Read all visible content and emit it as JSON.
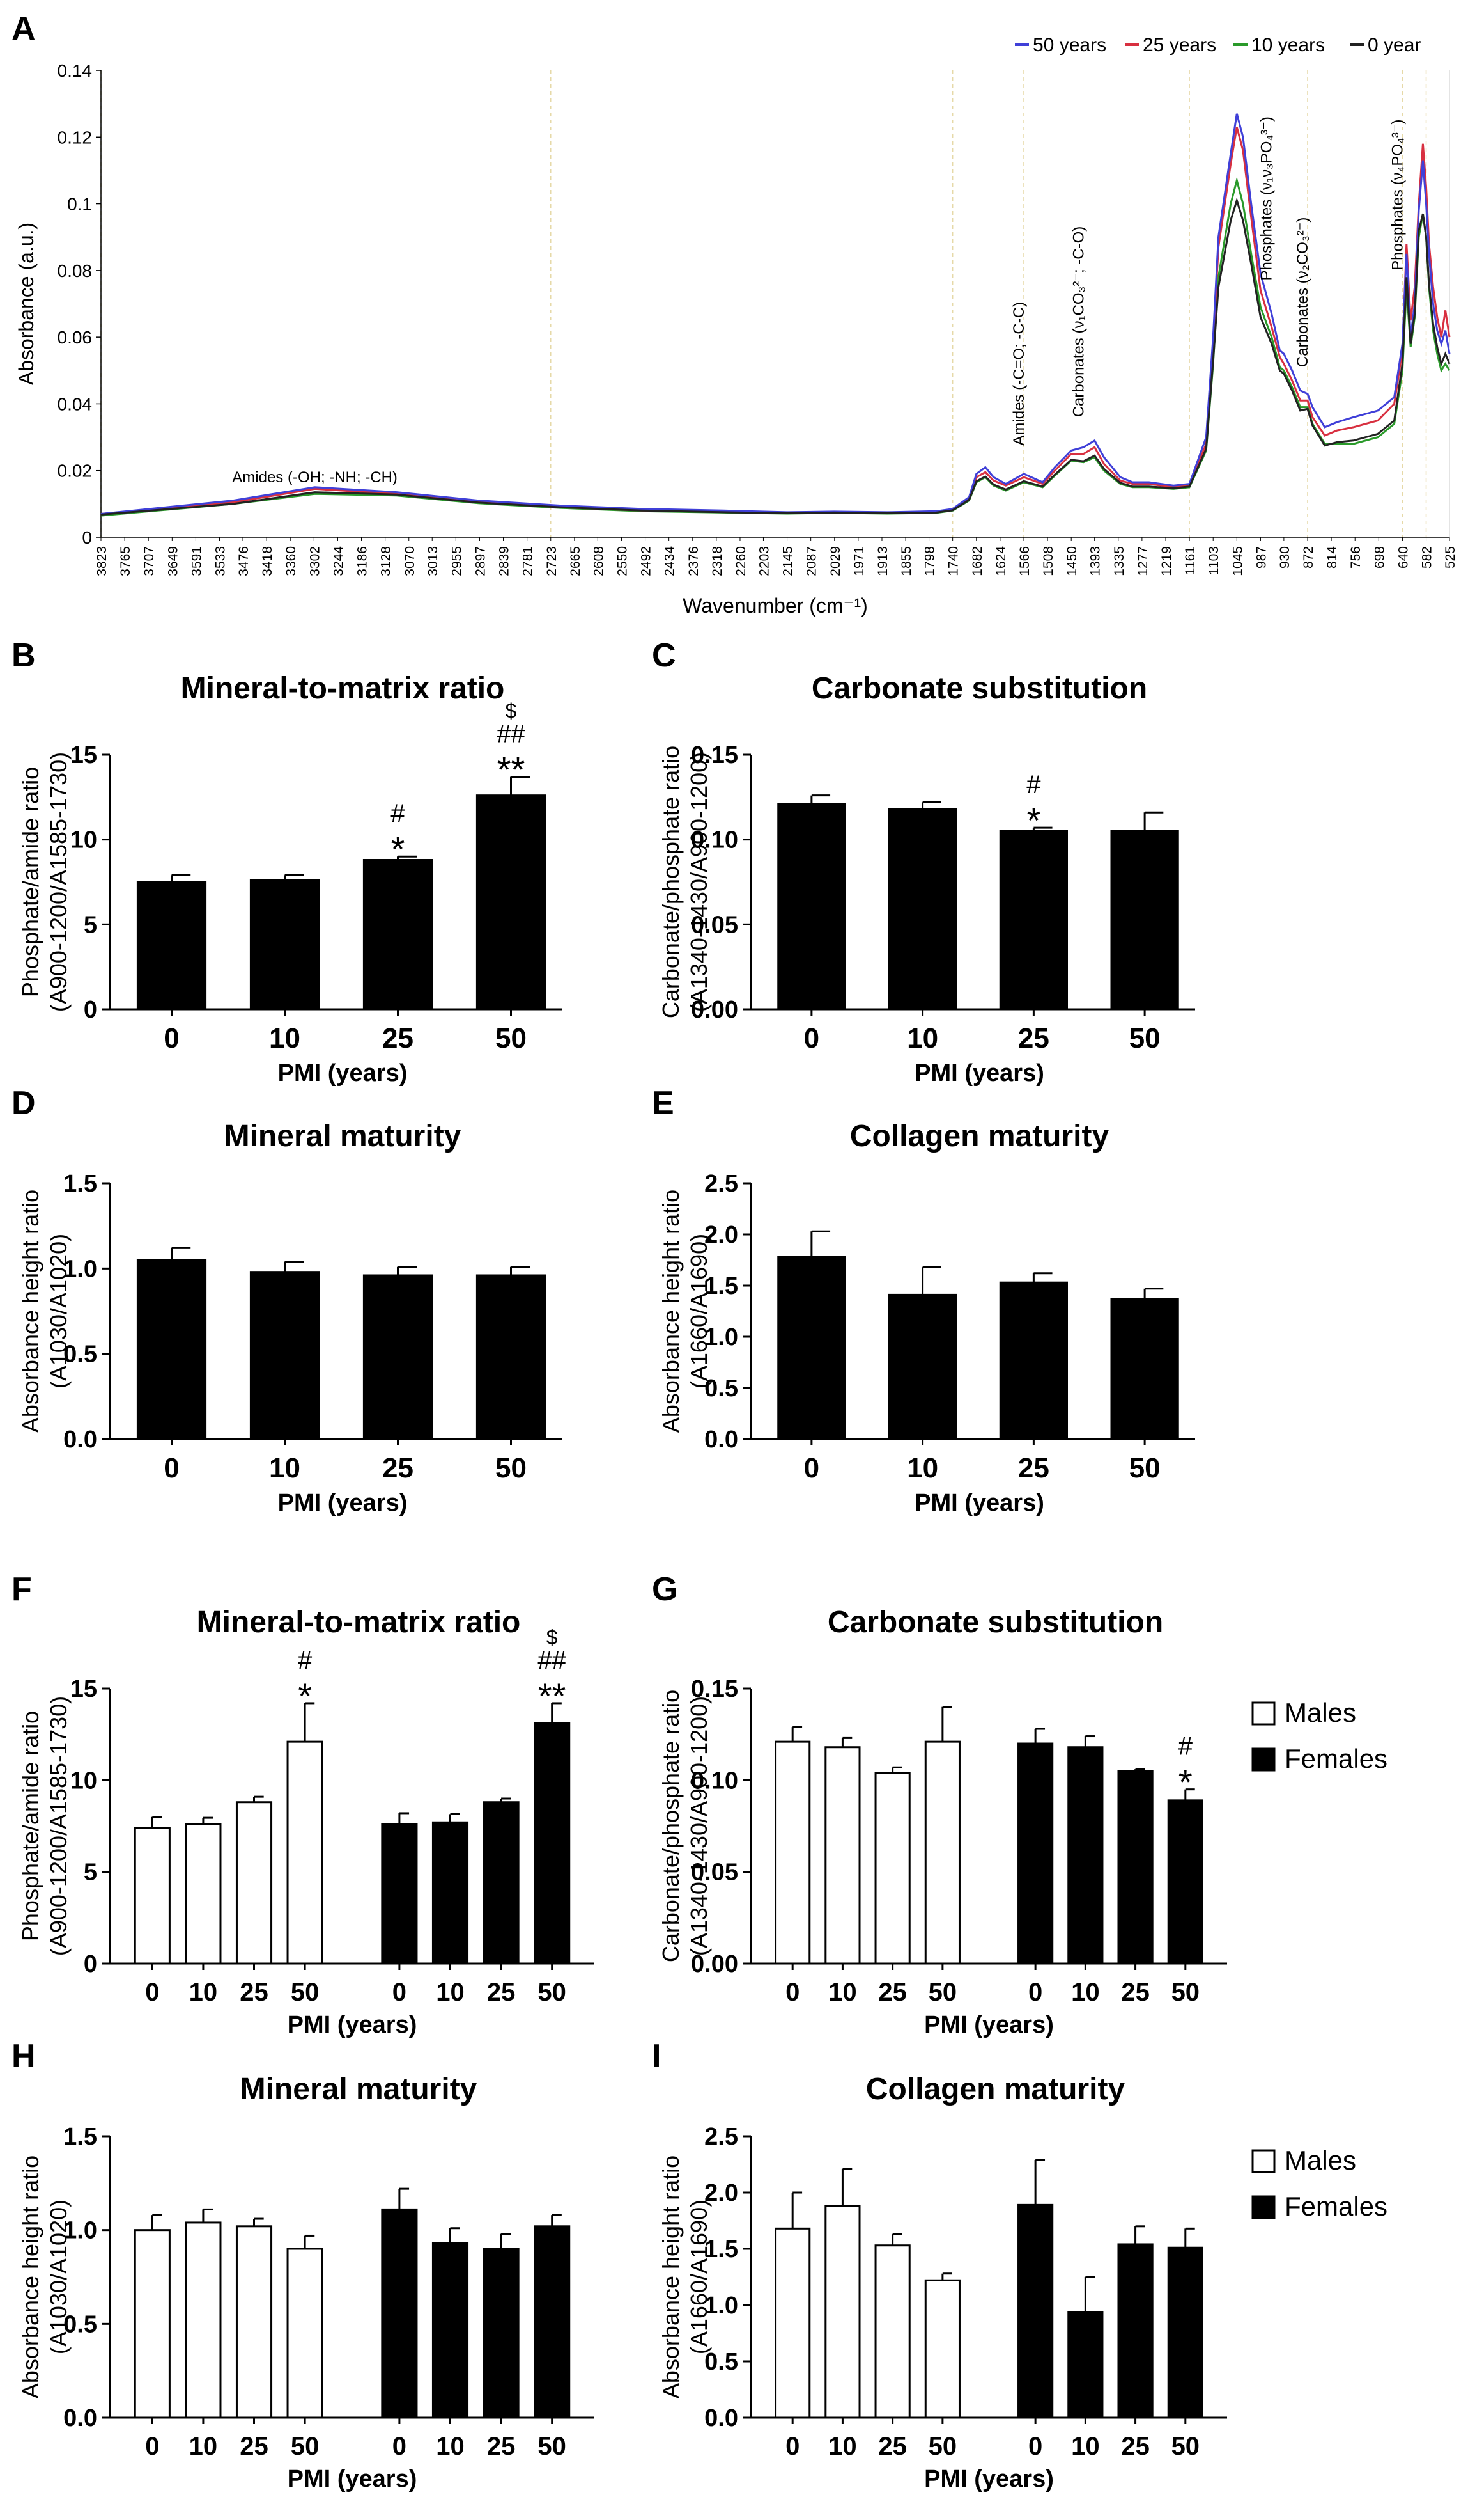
{
  "legend_spectrum": [
    {
      "label": "50 years",
      "color": "#4040d8"
    },
    {
      "label": "25 years",
      "color": "#d83040"
    },
    {
      "label": "10 years",
      "color": "#2a9a2a"
    },
    {
      "label": "0 year",
      "color": "#222222"
    }
  ],
  "legend_sex": {
    "males": "Males",
    "females": "Females"
  },
  "chart_data": [
    {
      "panel": "A",
      "type": "line",
      "xlabel": "Wavenumber (cm⁻¹)",
      "ylabel": "Absorbance (a.u.)",
      "ylim": [
        0,
        0.14
      ],
      "yticks": [
        "0",
        "0.02",
        "0.04",
        "0.06",
        "0.08",
        "0.1",
        "0.12",
        "0.14"
      ],
      "xticks": [
        "3823",
        "3765",
        "3707",
        "3649",
        "3591",
        "3533",
        "3476",
        "3418",
        "3360",
        "3302",
        "3244",
        "3186",
        "3128",
        "3070",
        "3013",
        "2955",
        "2897",
        "2839",
        "2781",
        "2723",
        "2665",
        "2608",
        "2550",
        "2492",
        "2434",
        "2376",
        "2318",
        "2260",
        "2203",
        "2145",
        "2087",
        "2029",
        "1971",
        "1913",
        "1855",
        "1798",
        "1740",
        "1682",
        "1624",
        "1566",
        "1508",
        "1450",
        "1393",
        "1335",
        "1277",
        "1219",
        "1161",
        "1103",
        "1045",
        "987",
        "930",
        "872",
        "814",
        "756",
        "698",
        "640",
        "582",
        "525"
      ],
      "x": [
        3823,
        3500,
        3300,
        3100,
        2900,
        2700,
        2500,
        2300,
        2145,
        2030,
        1900,
        1780,
        1740,
        1700,
        1682,
        1660,
        1640,
        1610,
        1566,
        1520,
        1490,
        1450,
        1420,
        1393,
        1370,
        1330,
        1300,
        1260,
        1200,
        1161,
        1120,
        1103,
        1090,
        1060,
        1045,
        1030,
        1010,
        987,
        960,
        940,
        930,
        910,
        890,
        872,
        860,
        830,
        800,
        760,
        700,
        660,
        640,
        630,
        620,
        610,
        600,
        590,
        582,
        575,
        565,
        555,
        545,
        535,
        525
      ],
      "series": [
        {
          "name": "50 years",
          "values": [
            0.007,
            0.011,
            0.015,
            0.0135,
            0.011,
            0.0095,
            0.0085,
            0.008,
            0.0075,
            0.0077,
            0.0075,
            0.0078,
            0.0085,
            0.012,
            0.019,
            0.021,
            0.018,
            0.016,
            0.019,
            0.0165,
            0.021,
            0.026,
            0.027,
            0.029,
            0.024,
            0.018,
            0.0165,
            0.0165,
            0.0155,
            0.016,
            0.03,
            0.06,
            0.09,
            0.115,
            0.127,
            0.12,
            0.1,
            0.079,
            0.067,
            0.056,
            0.055,
            0.05,
            0.044,
            0.043,
            0.039,
            0.033,
            0.0345,
            0.036,
            0.038,
            0.042,
            0.058,
            0.085,
            0.06,
            0.07,
            0.098,
            0.113,
            0.1,
            0.085,
            0.07,
            0.062,
            0.058,
            0.062,
            0.055
          ]
        },
        {
          "name": "25 years",
          "values": [
            0.007,
            0.0105,
            0.0145,
            0.013,
            0.0105,
            0.009,
            0.008,
            0.0076,
            0.0073,
            0.0075,
            0.0073,
            0.0076,
            0.0082,
            0.0115,
            0.018,
            0.0195,
            0.017,
            0.0155,
            0.018,
            0.016,
            0.02,
            0.025,
            0.025,
            0.027,
            0.022,
            0.017,
            0.016,
            0.016,
            0.015,
            0.0155,
            0.028,
            0.058,
            0.087,
            0.112,
            0.123,
            0.116,
            0.096,
            0.074,
            0.063,
            0.054,
            0.052,
            0.047,
            0.041,
            0.041,
            0.036,
            0.0305,
            0.032,
            0.033,
            0.035,
            0.04,
            0.056,
            0.088,
            0.065,
            0.075,
            0.1,
            0.118,
            0.105,
            0.088,
            0.075,
            0.066,
            0.06,
            0.068,
            0.06
          ]
        },
        {
          "name": "10 years",
          "values": [
            0.0065,
            0.01,
            0.013,
            0.0125,
            0.0102,
            0.0088,
            0.0078,
            0.0074,
            0.0071,
            0.0073,
            0.0071,
            0.0073,
            0.008,
            0.011,
            0.0165,
            0.018,
            0.0155,
            0.014,
            0.0165,
            0.015,
            0.0185,
            0.023,
            0.0225,
            0.024,
            0.02,
            0.016,
            0.015,
            0.015,
            0.0145,
            0.015,
            0.026,
            0.052,
            0.078,
            0.1,
            0.107,
            0.1,
            0.085,
            0.069,
            0.06,
            0.051,
            0.05,
            0.045,
            0.039,
            0.039,
            0.034,
            0.028,
            0.028,
            0.028,
            0.03,
            0.034,
            0.05,
            0.075,
            0.057,
            0.066,
            0.09,
            0.097,
            0.09,
            0.075,
            0.062,
            0.055,
            0.05,
            0.052,
            0.05
          ]
        },
        {
          "name": "0 year",
          "values": [
            0.0068,
            0.01,
            0.0135,
            0.0128,
            0.0104,
            0.009,
            0.008,
            0.0075,
            0.0072,
            0.0074,
            0.0072,
            0.0074,
            0.0081,
            0.0112,
            0.0168,
            0.0182,
            0.0158,
            0.0143,
            0.0168,
            0.0152,
            0.0188,
            0.0232,
            0.0228,
            0.0245,
            0.0205,
            0.0163,
            0.0152,
            0.0152,
            0.0147,
            0.0152,
            0.0265,
            0.053,
            0.075,
            0.095,
            0.101,
            0.095,
            0.082,
            0.066,
            0.058,
            0.05,
            0.049,
            0.044,
            0.038,
            0.0385,
            0.0335,
            0.0275,
            0.0285,
            0.029,
            0.031,
            0.035,
            0.052,
            0.078,
            0.058,
            0.067,
            0.092,
            0.097,
            0.09,
            0.076,
            0.064,
            0.057,
            0.052,
            0.055,
            0.052
          ]
        }
      ],
      "annotations": [
        {
          "text": "Amides (-OH; -NH; -CH)",
          "x": 3300,
          "y": 0.0165,
          "orient": "horizontal"
        },
        {
          "text": "Amides (-C=O; -C-C)",
          "x": 1566,
          "y": 0.0275,
          "orient": "vertical"
        },
        {
          "text": "Carbonates (ν₁CO₃²⁻; -C-O)",
          "x": 1420,
          "y": 0.036,
          "orient": "vertical"
        },
        {
          "text": "Phosphates (ν₁ν₃PO₄³⁻)",
          "x": 960,
          "y": 0.077,
          "orient": "vertical"
        },
        {
          "text": "Carbonates (ν₂CO₃²⁻)",
          "x": 872,
          "y": 0.051,
          "orient": "vertical"
        },
        {
          "text": "Phosphates (ν₄PO₄³⁻)",
          "x": 640,
          "y": 0.08,
          "orient": "vertical"
        }
      ]
    },
    {
      "panel": "B",
      "type": "bar",
      "title": "Mineral-to-matrix ratio",
      "ylabel": [
        "Phosphate/amide ratio",
        "(A900-1200/A1585-1730)"
      ],
      "xlabel": "PMI (years)",
      "categories": [
        "0",
        "10",
        "25",
        "50"
      ],
      "values": [
        7.5,
        7.6,
        8.8,
        12.6
      ],
      "errors": [
        0.4,
        0.3,
        0.2,
        1.1
      ],
      "ylim": [
        0,
        15
      ],
      "yticks": [
        "0",
        "5",
        "10",
        "15"
      ],
      "annotations": [
        [],
        [],
        [
          "#",
          "*"
        ],
        [
          "$",
          "##",
          "**"
        ]
      ]
    },
    {
      "panel": "C",
      "type": "bar",
      "title": "Carbonate substitution",
      "ylabel": [
        "Carbonate/phosphate ratio",
        "(A1340-1430/A900-1200)"
      ],
      "xlabel": "PMI (years)",
      "categories": [
        "0",
        "10",
        "25",
        "50"
      ],
      "values": [
        0.121,
        0.118,
        0.105,
        0.105
      ],
      "errors": [
        0.005,
        0.004,
        0.002,
        0.011
      ],
      "ylim": [
        0,
        0.15
      ],
      "yticks": [
        "0.00",
        "0.05",
        "0.10",
        "0.15"
      ],
      "annotations": [
        [],
        [],
        [
          "#",
          "*"
        ],
        []
      ]
    },
    {
      "panel": "D",
      "type": "bar",
      "title": "Mineral maturity",
      "ylabel": [
        "Absorbance height ratio",
        "(A1030/A1020)"
      ],
      "xlabel": "PMI (years)",
      "categories": [
        "0",
        "10",
        "25",
        "50"
      ],
      "values": [
        1.05,
        0.98,
        0.96,
        0.96
      ],
      "errors": [
        0.07,
        0.06,
        0.05,
        0.05
      ],
      "ylim": [
        0,
        1.5
      ],
      "yticks": [
        "0.0",
        "0.5",
        "1.0",
        "1.5"
      ],
      "annotations": [
        [],
        [],
        [],
        []
      ]
    },
    {
      "panel": "E",
      "type": "bar",
      "title": "Collagen maturity",
      "ylabel": [
        "Absorbance height ratio",
        "(A1660/A1690)"
      ],
      "xlabel": "PMI (years)",
      "categories": [
        "0",
        "10",
        "25",
        "50"
      ],
      "values": [
        1.78,
        1.41,
        1.53,
        1.37
      ],
      "errors": [
        0.25,
        0.27,
        0.09,
        0.1
      ],
      "ylim": [
        0,
        2.5
      ],
      "yticks": [
        "0.0",
        "0.5",
        "1.0",
        "1.5",
        "2.0",
        "2.5"
      ],
      "annotations": [
        [],
        [],
        [],
        []
      ]
    },
    {
      "panel": "F",
      "type": "grouped_bar",
      "title": "Mineral-to-matrix ratio",
      "ylabel": [
        "Phosphate/amide ratio",
        "(A900-1200/A1585-1730)"
      ],
      "xlabel": "PMI (years)",
      "categories": [
        "0",
        "10",
        "25",
        "50"
      ],
      "ylim": [
        0,
        15
      ],
      "yticks": [
        "0",
        "5",
        "10",
        "15"
      ],
      "series": [
        {
          "name": "Males",
          "values": [
            7.4,
            7.6,
            8.8,
            12.1
          ],
          "errors": [
            0.6,
            0.35,
            0.3,
            2.1
          ],
          "annotations": [
            [],
            [],
            [],
            [
              "#",
              "*"
            ]
          ]
        },
        {
          "name": "Females",
          "values": [
            7.6,
            7.7,
            8.8,
            13.1
          ],
          "errors": [
            0.6,
            0.45,
            0.2,
            1.1
          ],
          "annotations": [
            [],
            [],
            [],
            [
              "$",
              "##",
              "**"
            ]
          ]
        }
      ]
    },
    {
      "panel": "G",
      "type": "grouped_bar",
      "title": "Carbonate substitution",
      "ylabel": [
        "Carbonate/phosphate ratio",
        "(A1340-1430/A900-1200)"
      ],
      "xlabel": "PMI (years)",
      "categories": [
        "0",
        "10",
        "25",
        "50"
      ],
      "ylim": [
        0,
        0.15
      ],
      "yticks": [
        "0.00",
        "0.05",
        "0.10",
        "0.15"
      ],
      "series": [
        {
          "name": "Males",
          "values": [
            0.121,
            0.118,
            0.104,
            0.121
          ],
          "errors": [
            0.008,
            0.005,
            0.003,
            0.019
          ],
          "annotations": [
            [],
            [],
            [],
            []
          ]
        },
        {
          "name": "Females",
          "values": [
            0.12,
            0.118,
            0.105,
            0.089
          ],
          "errors": [
            0.008,
            0.006,
            0.001,
            0.006
          ],
          "annotations": [
            [],
            [],
            [],
            [
              "#",
              "*"
            ]
          ]
        }
      ]
    },
    {
      "panel": "H",
      "type": "grouped_bar",
      "title": "Mineral maturity",
      "ylabel": [
        "Absorbance height ratio",
        "(A1030/A1020)"
      ],
      "xlabel": "PMI (years)",
      "categories": [
        "0",
        "10",
        "25",
        "50"
      ],
      "ylim": [
        0,
        1.5
      ],
      "yticks": [
        "0.0",
        "0.5",
        "1.0",
        "1.5"
      ],
      "series": [
        {
          "name": "Males",
          "values": [
            1.0,
            1.04,
            1.02,
            0.9
          ],
          "errors": [
            0.08,
            0.07,
            0.04,
            0.07
          ],
          "annotations": [
            [],
            [],
            [],
            []
          ]
        },
        {
          "name": "Females",
          "values": [
            1.11,
            0.93,
            0.9,
            1.02
          ],
          "errors": [
            0.11,
            0.08,
            0.08,
            0.06
          ],
          "annotations": [
            [],
            [],
            [],
            []
          ]
        }
      ]
    },
    {
      "panel": "I",
      "type": "grouped_bar",
      "title": "Collagen maturity",
      "ylabel": [
        "Absorbance height ratio",
        "(A1660/A1690)"
      ],
      "xlabel": "PMI (years)",
      "categories": [
        "0",
        "10",
        "25",
        "50"
      ],
      "ylim": [
        0,
        2.5
      ],
      "yticks": [
        "0.0",
        "0.5",
        "1.0",
        "1.5",
        "2.0",
        "2.5"
      ],
      "series": [
        {
          "name": "Males",
          "values": [
            1.68,
            1.88,
            1.53,
            1.22
          ],
          "errors": [
            0.32,
            0.33,
            0.1,
            0.06
          ],
          "annotations": [
            [],
            [],
            [],
            []
          ]
        },
        {
          "name": "Females",
          "values": [
            1.89,
            0.94,
            1.54,
            1.51
          ],
          "errors": [
            0.4,
            0.31,
            0.16,
            0.17
          ],
          "annotations": [
            [],
            [],
            [],
            []
          ]
        }
      ]
    }
  ]
}
